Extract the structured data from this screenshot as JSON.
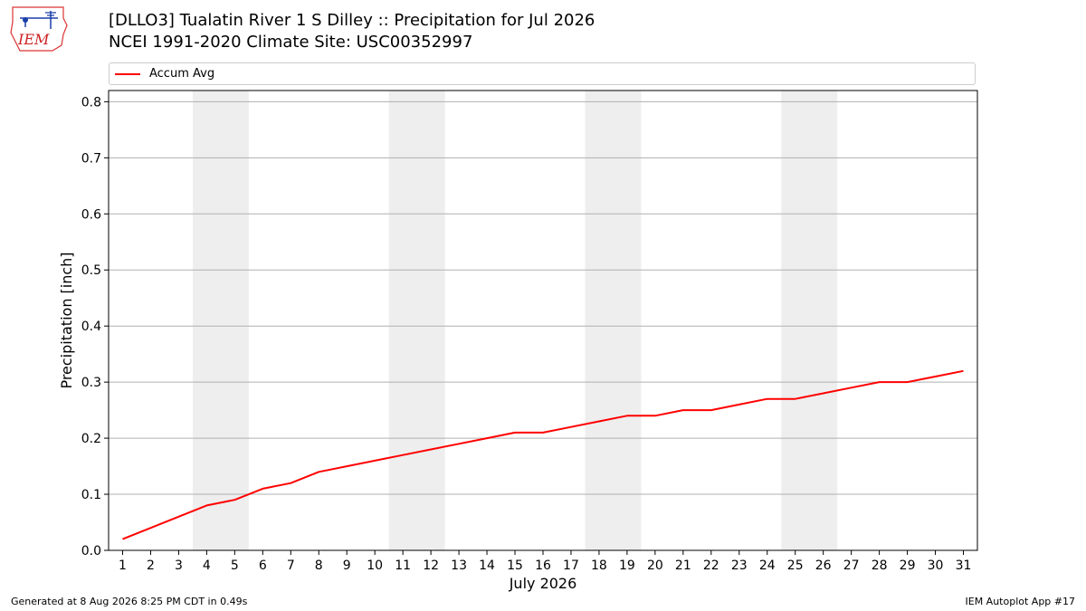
{
  "header": {
    "logo_text": "IEM",
    "title_line1": "[DLLO3] Tualatin River 1 S Dilley :: Precipitation for Jul 2026",
    "title_line2": "NCEI 1991-2020 Climate Site: USC00352997"
  },
  "footer": {
    "left": "Generated at 8 Aug 2026 8:25 PM CDT in 0.49s",
    "right": "IEM Autoplot App #17"
  },
  "chart_data": {
    "type": "line",
    "xlabel": "July 2026",
    "ylabel": "Precipitation [inch]",
    "x": [
      1,
      2,
      3,
      4,
      5,
      6,
      7,
      8,
      9,
      10,
      11,
      12,
      13,
      14,
      15,
      16,
      17,
      18,
      19,
      20,
      21,
      22,
      23,
      24,
      25,
      26,
      27,
      28,
      29,
      30,
      31
    ],
    "xticks": [
      "1",
      "2",
      "3",
      "4",
      "5",
      "6",
      "7",
      "8",
      "9",
      "10",
      "11",
      "12",
      "13",
      "14",
      "15",
      "16",
      "17",
      "18",
      "19",
      "20",
      "21",
      "22",
      "23",
      "24",
      "25",
      "26",
      "27",
      "28",
      "29",
      "30",
      "31"
    ],
    "xlim": [
      0.5,
      31.5
    ],
    "ylim": [
      0,
      0.82
    ],
    "yticks": [
      "0.0",
      "0.1",
      "0.2",
      "0.3",
      "0.4",
      "0.5",
      "0.6",
      "0.7",
      "0.8"
    ],
    "ytick_values": [
      0,
      0.1,
      0.2,
      0.3,
      0.4,
      0.5,
      0.6,
      0.7,
      0.8
    ],
    "grid": "horizontal",
    "weekend_bands": [
      [
        3.5,
        5.5
      ],
      [
        10.5,
        12.5
      ],
      [
        17.5,
        19.5
      ],
      [
        24.5,
        26.5
      ]
    ],
    "legend_position": "top",
    "colors": {
      "series": "#ff0000",
      "band": "#eeeeee",
      "grid": "#b0b0b0"
    },
    "series": [
      {
        "name": "Accum Avg",
        "values": [
          0.02,
          0.04,
          0.06,
          0.08,
          0.09,
          0.11,
          0.12,
          0.14,
          0.15,
          0.16,
          0.17,
          0.18,
          0.19,
          0.2,
          0.21,
          0.21,
          0.22,
          0.23,
          0.24,
          0.24,
          0.25,
          0.25,
          0.26,
          0.27,
          0.27,
          0.28,
          0.29,
          0.3,
          0.3,
          0.31,
          0.32
        ]
      }
    ]
  }
}
